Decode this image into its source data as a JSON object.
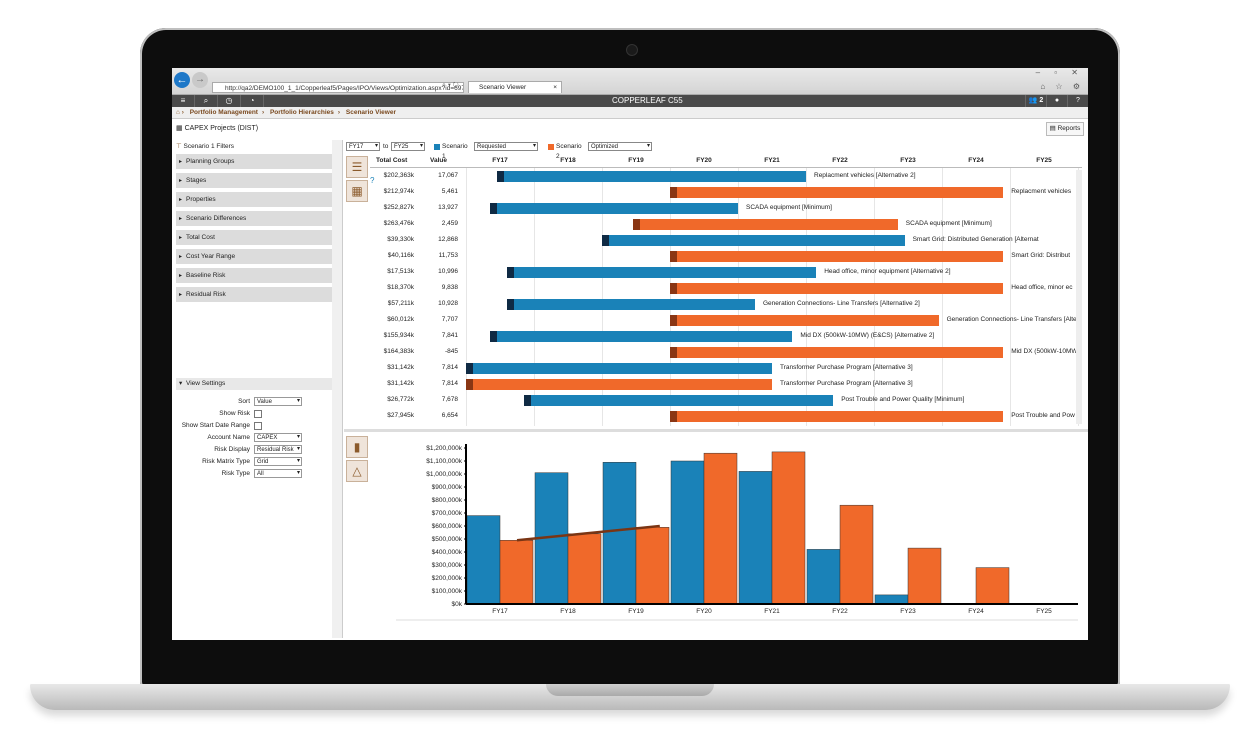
{
  "browser": {
    "url": "http://qa2/DEMO100_1_1/Copperleaf5/Pages/IPO/Views/Optimization.aspx?id=6977",
    "tab_title": "Scenario Viewer",
    "tab_close": "×"
  },
  "app": {
    "brand": "COPPERLEAF C55",
    "user_count": "2",
    "breadcrumbs": [
      "Portfolio Management",
      "Portfolio Hierarchies",
      "Scenario Viewer"
    ],
    "page_title": "CAPEX Projects (DIST)",
    "reports_label": "Reports"
  },
  "filters": {
    "header": "Scenario 1 Filters",
    "items": [
      "Planning Groups",
      "Stages",
      "Properties",
      "Scenario Differences",
      "Total Cost",
      "Cost Year Range",
      "Baseline Risk",
      "Residual Risk"
    ]
  },
  "view_settings": {
    "header": "View Settings",
    "rows": [
      {
        "label": "Sort",
        "type": "select",
        "value": "Value"
      },
      {
        "label": "Show Risk",
        "type": "check"
      },
      {
        "label": "Show Start Date Range",
        "type": "check"
      },
      {
        "label": "Account Name",
        "type": "select",
        "value": "CAPEX"
      },
      {
        "label": "Risk Display",
        "type": "select",
        "value": "Residual Risk"
      },
      {
        "label": "Risk Matrix Type",
        "type": "select",
        "value": "Grid"
      },
      {
        "label": "Risk Type",
        "type": "select",
        "value": "All"
      }
    ]
  },
  "controls": {
    "from_year": "FY17",
    "to_label": "to",
    "to_year": "FY25",
    "scenario1_label": "Scenario 1",
    "scenario1_value": "Requested",
    "scenario2_label": "Scenario 2",
    "scenario2_value": "Optimized",
    "blue": "#1a82b8",
    "orange": "#f0692a"
  },
  "gantt": {
    "headers": {
      "total_cost": "Total Cost",
      "value": "Value"
    },
    "years": [
      "FY17",
      "FY18",
      "FY19",
      "FY20",
      "FY21",
      "FY22",
      "FY23",
      "FY24",
      "FY25"
    ],
    "rows": [
      {
        "cost": "$202,363k",
        "value": "17,067",
        "scenario": 1,
        "start_year": 2017.45,
        "end_year": 2022.0,
        "label": "Replacment vehicles [Alternative 2]"
      },
      {
        "cost": "$212,974k",
        "value": "5,461",
        "scenario": 2,
        "start_year": 2020.0,
        "end_year": 2024.9,
        "label": "Replacment vehicles"
      },
      {
        "cost": "$252,827k",
        "value": "13,927",
        "scenario": 1,
        "start_year": 2017.35,
        "end_year": 2021.0,
        "label": "SCADA equipment [Minimum]"
      },
      {
        "cost": "$263,476k",
        "value": "2,459",
        "scenario": 2,
        "start_year": 2019.45,
        "end_year": 2023.35,
        "label": "SCADA equipment [Minimum]"
      },
      {
        "cost": "$39,330k",
        "value": "12,868",
        "scenario": 1,
        "start_year": 2019.0,
        "end_year": 2023.45,
        "label": "Smart Grid: Distributed Generation [Alternat"
      },
      {
        "cost": "$40,116k",
        "value": "11,753",
        "scenario": 2,
        "start_year": 2020.0,
        "end_year": 2024.9,
        "label": "Smart Grid: Distribut"
      },
      {
        "cost": "$17,513k",
        "value": "10,996",
        "scenario": 1,
        "start_year": 2017.6,
        "end_year": 2022.15,
        "label": "Head office, minor equipment [Alternative 2]"
      },
      {
        "cost": "$18,370k",
        "value": "9,838",
        "scenario": 2,
        "start_year": 2020.0,
        "end_year": 2024.9,
        "label": "Head office, minor ec"
      },
      {
        "cost": "$57,211k",
        "value": "10,928",
        "scenario": 1,
        "start_year": 2017.6,
        "end_year": 2021.25,
        "label": "Generation Connections- Line Transfers [Alternative 2]"
      },
      {
        "cost": "$60,012k",
        "value": "7,707",
        "scenario": 2,
        "start_year": 2020.0,
        "end_year": 2023.95,
        "label": "Generation Connections- Line Transfers [Alte"
      },
      {
        "cost": "$155,934k",
        "value": "7,841",
        "scenario": 1,
        "start_year": 2017.35,
        "end_year": 2021.8,
        "label": "Mid DX (500kW-10MW) (E&CS) [Alternative 2]"
      },
      {
        "cost": "$164,383k",
        "value": "-845",
        "scenario": 2,
        "start_year": 2020.0,
        "end_year": 2024.9,
        "label": "Mid DX (500kW-10MW"
      },
      {
        "cost": "$31,142k",
        "value": "7,814",
        "scenario": 1,
        "start_year": 2017.0,
        "end_year": 2021.5,
        "label": "Transformer Purchase Program [Alternative 3]"
      },
      {
        "cost": "$31,142k",
        "value": "7,814",
        "scenario": 2,
        "start_year": 2017.0,
        "end_year": 2021.5,
        "label": "Transformer Purchase Program [Alternative 3]"
      },
      {
        "cost": "$26,772k",
        "value": "7,678",
        "scenario": 1,
        "start_year": 2017.85,
        "end_year": 2022.4,
        "label": "Post Trouble and Power Quality [Minimum]"
      },
      {
        "cost": "$27,945k",
        "value": "6,654",
        "scenario": 2,
        "start_year": 2020.0,
        "end_year": 2024.9,
        "label": "Post Trouble and Pow"
      }
    ]
  },
  "chart_data": {
    "type": "bar",
    "categories": [
      "FY17",
      "FY18",
      "FY19",
      "FY20",
      "FY21",
      "FY22",
      "FY23",
      "FY24",
      "FY25"
    ],
    "series": [
      {
        "name": "Scenario 1",
        "color": "#1a82b8",
        "values": [
          680000,
          1010000,
          1090000,
          1100000,
          1020000,
          420000,
          70000,
          0,
          0
        ]
      },
      {
        "name": "Scenario 2",
        "color": "#f0692a",
        "values": [
          490000,
          540000,
          590000,
          1160000,
          1170000,
          760000,
          430000,
          280000,
          0
        ]
      }
    ],
    "trend_line": {
      "color": "#7a3514",
      "from": {
        "x": "FY17",
        "y": 490000
      },
      "to": {
        "x": "FY19",
        "y": 600000
      }
    },
    "yticks": [
      "$0k",
      "$100,000k",
      "$200,000k",
      "$300,000k",
      "$400,000k",
      "$500,000k",
      "$600,000k",
      "$700,000k",
      "$800,000k",
      "$900,000k",
      "$1,000,000k",
      "$1,100,000k",
      "$1,200,000k"
    ],
    "ylim": [
      0,
      1200000
    ],
    "grid": false
  }
}
